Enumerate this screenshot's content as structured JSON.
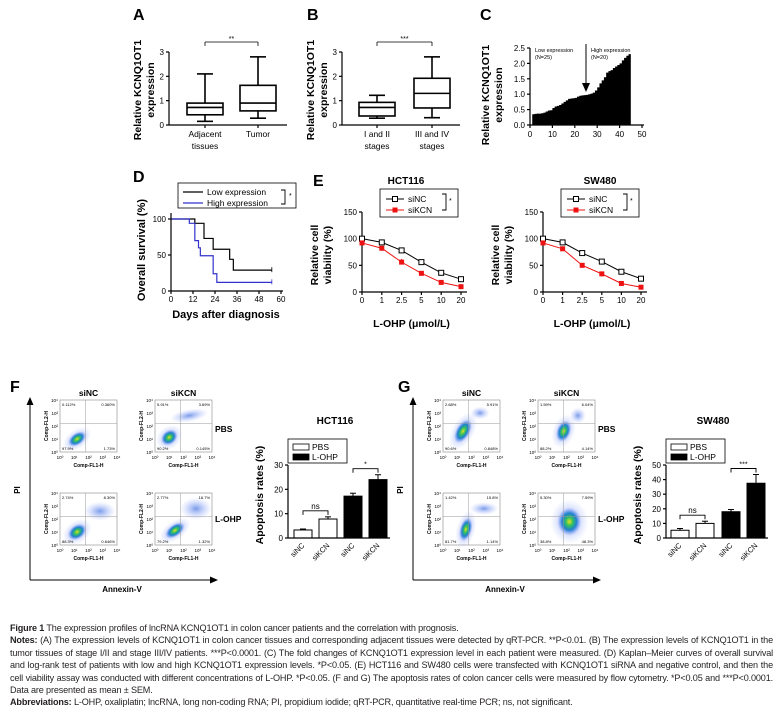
{
  "panels": {
    "A": "A",
    "B": "B",
    "C": "C",
    "D": "D",
    "E": "E",
    "F": "F",
    "G": "G"
  },
  "colors": {
    "black": "#000000",
    "blue": "#3333cc",
    "red": "#ee1111",
    "gray": "#888888"
  },
  "chart_data": [
    {
      "id": "A",
      "type": "boxplot",
      "ylabel_lines": [
        "Relative KCNQ1OT1",
        "expression"
      ],
      "ylim": [
        0,
        3
      ],
      "yticks": [
        "0",
        "1",
        "2",
        "3"
      ],
      "categories": [
        [
          "Adjacent",
          "tissues"
        ],
        [
          "Tumor"
        ]
      ],
      "boxes": [
        {
          "min": 0.15,
          "q1": 0.42,
          "median": 0.72,
          "q3": 0.9,
          "max": 2.1
        },
        {
          "min": 0.28,
          "q1": 0.58,
          "median": 0.9,
          "q3": 1.63,
          "max": 2.8
        }
      ],
      "significance": "**"
    },
    {
      "id": "B",
      "type": "boxplot",
      "ylabel_lines": [
        "Relative KCNQ1OT1",
        "expression"
      ],
      "ylim": [
        0,
        3
      ],
      "yticks": [
        "0",
        "1",
        "2",
        "3"
      ],
      "categories": [
        [
          "I and II",
          "stages"
        ],
        [
          "III and IV",
          "stages"
        ]
      ],
      "boxes": [
        {
          "min": 0.28,
          "q1": 0.37,
          "median": 0.72,
          "q3": 0.93,
          "max": 1.22
        },
        {
          "min": 0.3,
          "q1": 0.7,
          "median": 1.3,
          "q3": 1.92,
          "max": 2.8
        }
      ],
      "significance": "***"
    },
    {
      "id": "C",
      "type": "area",
      "ylabel_lines": [
        "Relative KCNQ1OT1",
        "expression"
      ],
      "xlim": [
        0,
        50
      ],
      "ylim": [
        0,
        2.5
      ],
      "xticks": [
        "0",
        "10",
        "20",
        "30",
        "40",
        "50"
      ],
      "yticks": [
        "0.0",
        "0.5",
        "1.0",
        "1.5",
        "2.0",
        "2.5"
      ],
      "values": [
        0.35,
        0.36,
        0.37,
        0.37,
        0.38,
        0.4,
        0.44,
        0.47,
        0.48,
        0.55,
        0.6,
        0.62,
        0.65,
        0.7,
        0.75,
        0.8,
        0.85,
        0.86,
        0.87,
        0.88,
        0.92,
        0.95,
        0.96,
        0.97,
        0.98,
        1.0,
        1.02,
        1.05,
        1.12,
        1.22,
        1.35,
        1.45,
        1.55,
        1.7,
        1.75,
        1.78,
        1.85,
        1.9,
        1.95,
        2.0,
        2.1,
        2.18,
        2.25,
        2.3,
        2.35
      ],
      "cutoff": 25,
      "annotations": [
        [
          "Low expression",
          "(N=25)"
        ],
        [
          "High expression",
          "(N=20)"
        ]
      ]
    },
    {
      "id": "D",
      "type": "line",
      "ylabel": "Overall survival (%)",
      "xlabel": "Days after diagnosis",
      "xlim": [
        0,
        60
      ],
      "ylim": [
        0,
        100
      ],
      "xticks": [
        "0",
        "12",
        "24",
        "36",
        "48",
        "60"
      ],
      "yticks": [
        "0",
        "50",
        "100"
      ],
      "series": [
        {
          "name": "Low expression",
          "color": "#000000",
          "steps": [
            [
              0,
              100
            ],
            [
              13,
              94
            ],
            [
              18,
              73
            ],
            [
              23,
              58
            ],
            [
              32,
              44
            ],
            [
              34,
              29
            ],
            [
              55,
              29
            ]
          ]
        },
        {
          "name": "High expression",
          "color": "#3333cc",
          "steps": [
            [
              0,
              100
            ],
            [
              10,
              94
            ],
            [
              13,
              70
            ],
            [
              15,
              60
            ],
            [
              16,
              49
            ],
            [
              23,
              24
            ],
            [
              25,
              12
            ],
            [
              55,
              12
            ]
          ]
        }
      ],
      "significance": "*"
    },
    {
      "id": "E1",
      "type": "line",
      "title": "HCT116",
      "ylabel_lines": [
        "Relative cell",
        "viability (%)"
      ],
      "xlabel": "L-OHP (μmol/L)",
      "categories": [
        "0",
        "1",
        "2.5",
        "5",
        "10",
        "20"
      ],
      "ylim": [
        0,
        150
      ],
      "yticks": [
        "0",
        "50",
        "100",
        "150"
      ],
      "series": [
        {
          "name": "siNC",
          "color": "#000000",
          "values": [
            100,
            93,
            78,
            56,
            36,
            24
          ],
          "err": [
            8,
            3,
            3,
            4,
            4,
            3
          ]
        },
        {
          "name": "siKCN",
          "color": "#ee1111",
          "values": [
            92,
            82,
            56,
            35,
            18,
            10
          ],
          "err": [
            3,
            3,
            6,
            3,
            3,
            2
          ]
        }
      ],
      "significance": "*"
    },
    {
      "id": "E2",
      "type": "line",
      "title": "SW480",
      "ylabel_lines": [
        "Relative cell",
        "viability (%)"
      ],
      "xlabel": "L-OHP (μmol/L)",
      "categories": [
        "0",
        "1",
        "2.5",
        "5",
        "10",
        "20"
      ],
      "ylim": [
        0,
        150
      ],
      "yticks": [
        "0",
        "50",
        "100",
        "150"
      ],
      "series": [
        {
          "name": "siNC",
          "color": "#000000",
          "values": [
            100,
            93,
            73,
            57,
            38,
            25
          ],
          "err": [
            3,
            3,
            3,
            4,
            4,
            2
          ]
        },
        {
          "name": "siKCN",
          "color": "#ee1111",
          "values": [
            92,
            81,
            50,
            34,
            16,
            9
          ],
          "err": [
            3,
            3,
            3,
            4,
            2,
            2
          ]
        }
      ],
      "significance": "*"
    },
    {
      "id": "F-bar",
      "type": "bar",
      "title": "HCT116",
      "ylabel": "Apoptosis rates (%)",
      "ylim": [
        0,
        30
      ],
      "yticks": [
        "0",
        "10",
        "20",
        "30"
      ],
      "categories": [
        "siNC",
        "siKCN",
        "siNC",
        "siKCN"
      ],
      "legend": [
        "PBS",
        "L-OHP"
      ],
      "values": [
        3.3,
        7.8,
        17.2,
        24
      ],
      "err": [
        0.4,
        0.9,
        1.2,
        2
      ],
      "groups": [
        "PBS",
        "PBS",
        "L-OHP",
        "L-OHP"
      ],
      "significance": [
        "ns",
        "*"
      ]
    },
    {
      "id": "G-bar",
      "type": "bar",
      "title": "SW480",
      "ylabel": "Apoptosis rates (%)",
      "ylim": [
        0,
        50
      ],
      "yticks": [
        "0",
        "10",
        "20",
        "30",
        "40",
        "50"
      ],
      "categories": [
        "siNC",
        "siKCN",
        "siNC",
        "siKCN"
      ],
      "legend": [
        "PBS",
        "L-OHP"
      ],
      "values": [
        5.3,
        10,
        18,
        37.5
      ],
      "err": [
        1.2,
        1.5,
        1.5,
        6
      ],
      "groups": [
        "PBS",
        "PBS",
        "L-OHP",
        "L-OHP"
      ],
      "significance": [
        "ns",
        "***"
      ]
    }
  ],
  "flow": {
    "column_titles": [
      "siNC",
      "siKCN"
    ],
    "row_labels": [
      "PBS",
      "L-OHP"
    ],
    "y_axis": "PI",
    "x_axis": "Annexin-V",
    "plot_ylabel": "Comp-FL2-H",
    "plot_xlabel": "Comp-FL1-H",
    "ticks": [
      "10⁰",
      "10¹",
      "10²",
      "10³",
      "10⁴"
    ],
    "F": [
      {
        "quadrants": [
          "0.112%",
          "0.360%",
          "97.9%",
          "1.73%"
        ]
      },
      {
        "quadrants": [
          "5.91%",
          "3.69%",
          "90.2%",
          "0.145%"
        ]
      },
      {
        "quadrants": [
          "2.74%",
          "8.30%",
          "88.3%",
          "0.646%"
        ]
      },
      {
        "quadrants": [
          "2.77%",
          "16.7%",
          "79.2%",
          "1.32%"
        ]
      }
    ],
    "G": [
      {
        "quadrants": [
          "2.68%",
          "5.91%",
          "90.6%",
          "0.848%"
        ]
      },
      {
        "quadrants": [
          "1.59%",
          "6.04%",
          "88.2%",
          "4.14%"
        ]
      },
      {
        "quadrants": [
          "1.42%",
          "15.8%",
          "81.7%",
          "1.14%"
        ]
      },
      {
        "quadrants": [
          "5.30%",
          "7.59%",
          "38.8%",
          "48.3%"
        ]
      }
    ]
  },
  "caption": {
    "figure_label": "Figure 1",
    "title": "The expression profiles of lncRNA KCNQ1OT1 in colon cancer patients and the correlation with prognosis.",
    "notes_label": "Notes:",
    "notes": "(A) The expression levels of KCNQ1OT1 in colon cancer tissues and corresponding adjacent tissues were detected by qRT-PCR. **P<0.01. (B) The expression levels of KCNQ1OT1 in the tumor tissues of stage I/II and stage III/IV patients. ***P<0.0001. (C) The fold changes of KCNQ1OT1 expression level in each patient were measured. (D) Kaplan–Meier curves of overall survival and log-rank test of patients with low and high KCNQ1OT1 expression levels. *P<0.05. (E) HCT116 and SW480 cells were transfected with KCNQ1OT1 siRNA and negative control, and then the cell viability assay was conducted with different concentrations of L-OHP. *P<0.05. (F and G) The apoptosis rates of colon cancer cells were measured by flow cytometry. *P<0.05 and ***P<0.0001. Data are presented as mean ± SEM.",
    "abbr_label": "Abbreviations:",
    "abbr": "L-OHP, oxaliplatin; lncRNA, long non-coding RNA; PI, propidium iodide; qRT-PCR, quantitative real-time PCR; ns, not significant."
  }
}
